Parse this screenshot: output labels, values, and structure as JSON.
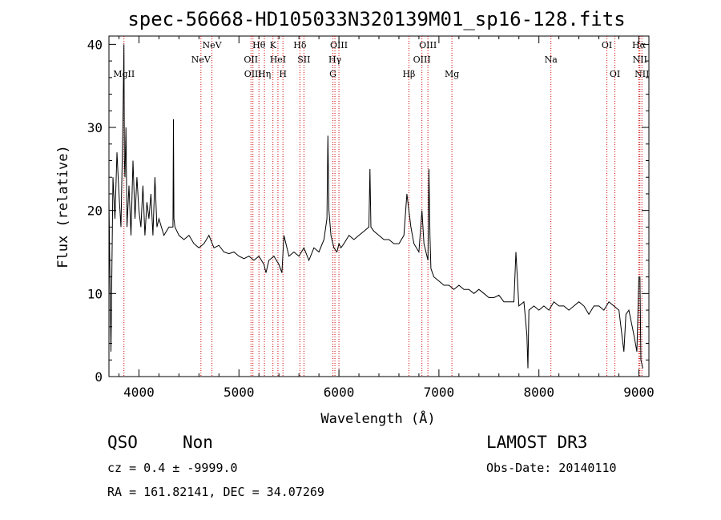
{
  "chart_data": {
    "type": "line",
    "title": "spec-56668-HD105033N320139M01_sp16-128.fits",
    "xlabel": "Wavelength (Å)",
    "ylabel": "Flux (relative)",
    "xlim": [
      3700,
      9100
    ],
    "ylim": [
      0,
      41
    ],
    "xticks": [
      4000,
      5000,
      6000,
      7000,
      8000,
      9000
    ],
    "yticks": [
      0,
      10,
      20,
      30,
      40
    ],
    "grid": false,
    "line_color": "#000000",
    "marker_color": "#cc0000",
    "series": [
      {
        "x": [
          3700,
          3720,
          3740,
          3760,
          3780,
          3800,
          3820,
          3840,
          3850,
          3855,
          3860,
          3870,
          3880,
          3900,
          3920,
          3940,
          3960,
          3980,
          4000,
          4020,
          4040,
          4060,
          4080,
          4100,
          4120,
          4140,
          4160,
          4180,
          4200,
          4250,
          4300,
          4340,
          4345,
          4350,
          4360,
          4400,
          4450,
          4500,
          4550,
          4600,
          4650,
          4700,
          4750,
          4800,
          4850,
          4900,
          4950,
          5000,
          5050,
          5100,
          5150,
          5200,
          5250,
          5270,
          5300,
          5350,
          5400,
          5430,
          5450,
          5500,
          5550,
          5600,
          5650,
          5700,
          5750,
          5800,
          5850,
          5880,
          5890,
          5900,
          5920,
          5950,
          5980,
          6000,
          6020,
          6050,
          6100,
          6150,
          6200,
          6250,
          6300,
          6310,
          6320,
          6350,
          6400,
          6450,
          6500,
          6550,
          6600,
          6650,
          6680,
          6700,
          6720,
          6750,
          6800,
          6830,
          6850,
          6890,
          6900,
          6910,
          6920,
          6950,
          7000,
          7050,
          7100,
          7150,
          7200,
          7250,
          7300,
          7350,
          7400,
          7450,
          7500,
          7550,
          7600,
          7650,
          7700,
          7750,
          7770,
          7800,
          7850,
          7880,
          7890,
          7900,
          7950,
          8000,
          8050,
          8100,
          8150,
          8200,
          8250,
          8300,
          8350,
          8400,
          8450,
          8500,
          8550,
          8600,
          8650,
          8700,
          8750,
          8800,
          8850,
          8870,
          8900,
          8950,
          8980,
          9000,
          9010,
          9020,
          9040
        ],
        "y": [
          21,
          3,
          24,
          19,
          27,
          22,
          18,
          31,
          40,
          26,
          24,
          30,
          18,
          23,
          17,
          26,
          19,
          24,
          20,
          18,
          23,
          17,
          21,
          19,
          22,
          17,
          24,
          18,
          19,
          17,
          18,
          18,
          31,
          19,
          18,
          17,
          16.5,
          17,
          16,
          15.5,
          16,
          17,
          15.5,
          15.8,
          15,
          14.8,
          15,
          14.5,
          14.2,
          14.5,
          14,
          14.5,
          13.5,
          12.5,
          14,
          14.5,
          13.5,
          12.5,
          17,
          14.5,
          15,
          14.5,
          15.5,
          14,
          15.5,
          15,
          16.5,
          19,
          29,
          20,
          17,
          15.5,
          15,
          16,
          15.5,
          16,
          17,
          16.5,
          17,
          17.5,
          18,
          25,
          18,
          17.5,
          17,
          16.5,
          16.5,
          16,
          16,
          17,
          22,
          20,
          18,
          16,
          15,
          20,
          16,
          14,
          25,
          17,
          13,
          12,
          11.5,
          11,
          11,
          10.5,
          11,
          10.5,
          10.5,
          10,
          10.5,
          10,
          9.5,
          9.5,
          9.8,
          9,
          9,
          9,
          15,
          8.5,
          9,
          5,
          1,
          8,
          8.5,
          8,
          8.5,
          8,
          9,
          8.5,
          8.5,
          8,
          8.5,
          9,
          8.5,
          7.5,
          8.5,
          8.5,
          8,
          9,
          8.5,
          8,
          3,
          7.5,
          8,
          5,
          3,
          12,
          12,
          2,
          1
        ]
      }
    ],
    "line_markers": [
      {
        "label": "MgII",
        "x": 3850,
        "row": 2
      },
      {
        "label": "NeV",
        "x": 4620,
        "row": 1
      },
      {
        "label": "NeV",
        "x": 4730,
        "row": 0
      },
      {
        "label": "OII",
        "x": 5120,
        "row": 1
      },
      {
        "label": "OIII",
        "x": 5140,
        "row": 2
      },
      {
        "label": "Hθ",
        "x": 5200,
        "row": 0
      },
      {
        "label": "Hη",
        "x": 5255,
        "row": 2
      },
      {
        "label": "K",
        "x": 5340,
        "row": 0
      },
      {
        "label": "HeI",
        "x": 5390,
        "row": 1
      },
      {
        "label": "H",
        "x": 5440,
        "row": 2
      },
      {
        "label": "Hδ",
        "x": 5610,
        "row": 0
      },
      {
        "label": "SII",
        "x": 5650,
        "row": 1
      },
      {
        "label": "G",
        "x": 5940,
        "row": 2
      },
      {
        "label": "Hγ",
        "x": 5960,
        "row": 1
      },
      {
        "label": "OIII",
        "x": 6000,
        "row": 0
      },
      {
        "label": "Hβ",
        "x": 6700,
        "row": 2
      },
      {
        "label": "OIII",
        "x": 6830,
        "row": 1
      },
      {
        "label": "OIII",
        "x": 6890,
        "row": 0
      },
      {
        "label": "Mg",
        "x": 7130,
        "row": 2
      },
      {
        "label": "Na",
        "x": 8120,
        "row": 1
      },
      {
        "label": "OI",
        "x": 8680,
        "row": 0
      },
      {
        "label": "OI",
        "x": 8760,
        "row": 2
      },
      {
        "label": "Hα",
        "x": 9000,
        "row": 0
      },
      {
        "label": "NII",
        "x": 9010,
        "row": 1
      },
      {
        "label": "NII",
        "x": 9030,
        "row": 2
      }
    ]
  },
  "info": {
    "class": "QSO",
    "subclass": "Non",
    "survey": "LAMOST DR3",
    "cz": "cz = 0.4 ± -9999.0",
    "obs_date": "Obs-Date: 20140110",
    "coords": "RA = 161.82141, DEC =  34.07269"
  }
}
